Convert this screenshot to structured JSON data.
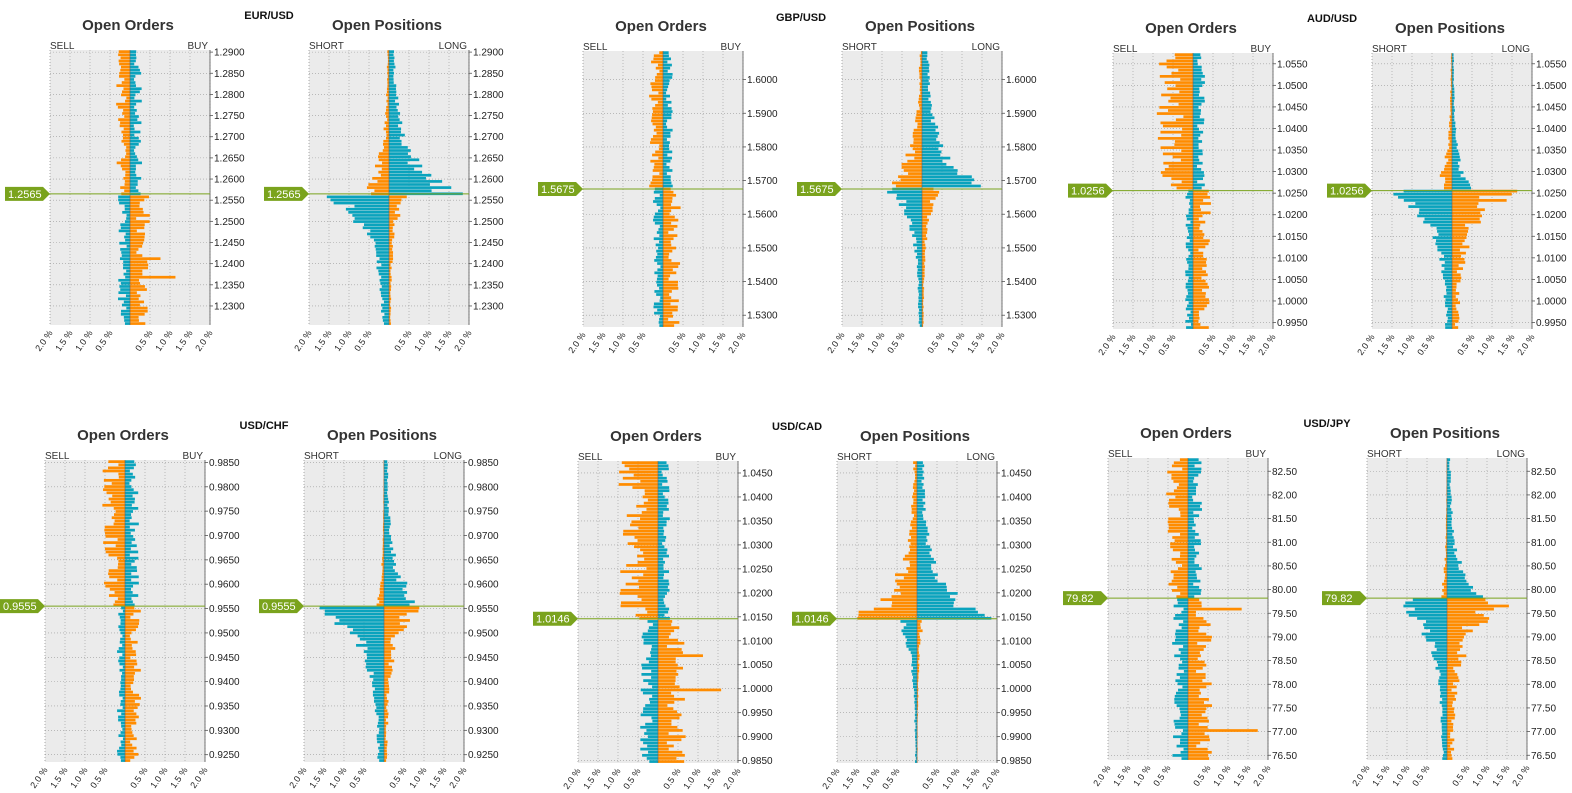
{
  "colors": {
    "orange": "#ff8c00",
    "teal": "#0aa3bd",
    "current_price": "#7aa31d",
    "plot_bg": "#ebebeb",
    "grid": "#9a9a9a"
  },
  "labels": {
    "orders_title": "Open Orders",
    "positions_title": "Open Positions",
    "orders_left": "SELL",
    "orders_right": "BUY",
    "positions_left": "SHORT",
    "positions_right": "LONG"
  },
  "chart_data": [
    {
      "type": "bar",
      "pair": "EUR/USD",
      "current_price": "1.2565",
      "current_value": 1.2565,
      "ylim": [
        1.2255,
        1.2905
      ],
      "yticks": [
        "1.2900",
        "1.2850",
        "1.2800",
        "1.2750",
        "1.2700",
        "1.2650",
        "1.2600",
        "1.2550",
        "1.2500",
        "1.2450",
        "1.2400",
        "1.2350",
        "1.2300"
      ],
      "ytick_values": [
        1.29,
        1.285,
        1.28,
        1.275,
        1.27,
        1.265,
        1.26,
        1.255,
        1.25,
        1.245,
        1.24,
        1.235,
        1.23
      ],
      "xlim": [
        -2.0,
        2.0
      ],
      "xticks": [
        "2.0 %",
        "1.5 %",
        "1.0 %",
        "0.5 %",
        "0.5 %",
        "1.0 %",
        "1.5 %",
        "2.0 %"
      ],
      "xtick_values": [
        -2.0,
        -1.5,
        -1.0,
        -0.5,
        0.5,
        1.0,
        1.5,
        2.0
      ],
      "orders": {
        "buy_above": 0.3,
        "sell_above": 0.35,
        "buy_below": 0.5,
        "sell_below": 0.3,
        "peak_buy_below": 1.25
      },
      "positions": {
        "long_above": 2.0,
        "short_above": 0.85,
        "short_below": 2.0,
        "long_below": 0.55,
        "shape": "peak"
      }
    },
    {
      "type": "bar",
      "pair": "GBP/USD",
      "current_price": "1.5675",
      "current_value": 1.5675,
      "ylim": [
        1.5265,
        1.6085
      ],
      "yticks": [
        "1.6000",
        "1.5900",
        "1.5800",
        "1.5700",
        "1.5600",
        "1.5500",
        "1.5400",
        "1.5300"
      ],
      "ytick_values": [
        1.6,
        1.59,
        1.58,
        1.57,
        1.56,
        1.55,
        1.54,
        1.53
      ],
      "xlim": [
        -2.0,
        2.0
      ],
      "xticks": [
        "2.0 %",
        "1.5 %",
        "1.0 %",
        "0.5 %",
        "0.5 %",
        "1.0 %",
        "1.5 %",
        "2.0 %"
      ],
      "xtick_values": [
        -2.0,
        -1.5,
        -1.0,
        -0.5,
        0.5,
        1.0,
        1.5,
        2.0
      ],
      "orders": {
        "buy_above": 0.25,
        "sell_above": 0.35,
        "buy_below": 0.4,
        "sell_below": 0.25,
        "peak_buy_below": 0.45
      },
      "positions": {
        "long_above": 2.0,
        "short_above": 1.15,
        "short_below": 1.0,
        "long_below": 0.5,
        "shape": "peak"
      }
    },
    {
      "type": "bar",
      "pair": "AUD/USD",
      "current_price": "1.0256",
      "current_value": 1.0256,
      "ylim": [
        0.9935,
        1.0575
      ],
      "yticks": [
        "1.0550",
        "1.0500",
        "1.0450",
        "1.0400",
        "1.0350",
        "1.0300",
        "1.0250",
        "1.0200",
        "1.0150",
        "1.0100",
        "1.0050",
        "1.0000",
        "0.9950"
      ],
      "ytick_values": [
        1.055,
        1.05,
        1.045,
        1.04,
        1.035,
        1.03,
        1.025,
        1.02,
        1.015,
        1.01,
        1.005,
        1.0,
        0.995
      ],
      "xlim": [
        -2.0,
        2.0
      ],
      "xticks": [
        "2.0 %",
        "1.5 %",
        "1.0 %",
        "0.5 %",
        "0.5 %",
        "1.0 %",
        "1.5 %",
        "2.0 %"
      ],
      "xtick_values": [
        -2.0,
        -1.5,
        -1.0,
        -0.5,
        0.5,
        1.0,
        1.5,
        2.0
      ],
      "orders": {
        "buy_above": 0.3,
        "sell_above": 0.95,
        "buy_below": 0.45,
        "sell_below": 0.2,
        "peak_sell_above": 1.0
      },
      "positions": {
        "long_above": 0.55,
        "short_above": 0.5,
        "short_below": 1.9,
        "long_below": 2.0,
        "shape": "peak"
      }
    },
    {
      "type": "bar",
      "pair": "USD/CHF",
      "current_price": "0.9555",
      "current_value": 0.9555,
      "ylim": [
        0.9235,
        0.9855
      ],
      "yticks": [
        "0.9850",
        "0.9800",
        "0.9750",
        "0.9700",
        "0.9650",
        "0.9600",
        "0.9550",
        "0.9500",
        "0.9450",
        "0.9400",
        "0.9350",
        "0.9300",
        "0.9250"
      ],
      "ytick_values": [
        0.985,
        0.98,
        0.975,
        0.97,
        0.965,
        0.96,
        0.955,
        0.95,
        0.945,
        0.94,
        0.935,
        0.93,
        0.925
      ],
      "xlim": [
        -2.0,
        2.0
      ],
      "xticks": [
        "2.0 %",
        "1.5 %",
        "1.0 %",
        "0.5 %",
        "0.5 %",
        "1.0 %",
        "1.5 %",
        "2.0 %"
      ],
      "xtick_values": [
        -2.0,
        -1.5,
        -1.0,
        -0.5,
        0.5,
        1.0,
        1.5,
        2.0
      ],
      "orders": {
        "buy_above": 0.35,
        "sell_above": 0.6,
        "buy_below": 0.4,
        "sell_below": 0.2,
        "peak_buy_below": 0.45
      },
      "positions": {
        "long_above": 1.1,
        "short_above": 0.2,
        "short_below": 2.0,
        "long_below": 1.0,
        "shape": "peak"
      }
    },
    {
      "type": "bar",
      "pair": "USD/CAD",
      "current_price": "1.0146",
      "current_value": 1.0146,
      "ylim": [
        0.9845,
        1.0475
      ],
      "yticks": [
        "1.0450",
        "1.0400",
        "1.0350",
        "1.0300",
        "1.0250",
        "1.0200",
        "1.0150",
        "1.0100",
        "1.0050",
        "1.0000",
        "0.9950",
        "0.9900",
        "0.9850"
      ],
      "ytick_values": [
        1.045,
        1.04,
        1.035,
        1.03,
        1.025,
        1.02,
        1.015,
        1.01,
        1.005,
        1.0,
        0.995,
        0.99,
        0.985
      ],
      "xlim": [
        -2.0,
        2.0
      ],
      "xticks": [
        "2.0 %",
        "1.5 %",
        "1.0 %",
        "0.5 %",
        "0.5 %",
        "1.0 %",
        "1.5 %",
        "2.0 %"
      ],
      "xtick_values": [
        -2.0,
        -1.5,
        -1.0,
        -0.5,
        0.5,
        1.0,
        1.5,
        2.0
      ],
      "orders": {
        "buy_above": 0.3,
        "sell_above": 1.0,
        "buy_below": 0.7,
        "sell_below": 0.45,
        "peak_buy_below": 1.6
      },
      "positions": {
        "long_above": 2.0,
        "short_above": 1.8,
        "short_below": 0.55,
        "long_below": 0.2,
        "shape": "peak"
      }
    },
    {
      "type": "bar",
      "pair": "USD/JPY",
      "current_price": "79.82",
      "current_value": 79.82,
      "ylim": [
        76.4,
        82.78
      ],
      "yticks": [
        "82.50",
        "82.00",
        "81.50",
        "81.00",
        "80.50",
        "80.00",
        "79.50",
        "79.00",
        "78.50",
        "78.00",
        "77.50",
        "77.00",
        "76.50"
      ],
      "ytick_values": [
        82.5,
        82.0,
        81.5,
        81.0,
        80.5,
        80.0,
        79.5,
        79.0,
        78.5,
        78.0,
        77.5,
        77.0,
        76.5
      ],
      "xlim": [
        -2.0,
        2.0
      ],
      "xticks": [
        "2.0 %",
        "1.5 %",
        "1.0 %",
        "0.5 %",
        "0.5 %",
        "1.0 %",
        "1.5 %",
        "2.0 %"
      ],
      "xtick_values": [
        -2.0,
        -1.5,
        -1.0,
        -0.5,
        0.5,
        1.0,
        1.5,
        2.0
      ],
      "orders": {
        "buy_above": 0.35,
        "sell_above": 0.55,
        "buy_below": 0.6,
        "sell_below": 0.4,
        "peak_buy_below": 1.8
      },
      "positions": {
        "long_above": 0.95,
        "short_above": 0.2,
        "short_below": 1.6,
        "long_below": 2.0,
        "shape": "peak"
      }
    }
  ]
}
